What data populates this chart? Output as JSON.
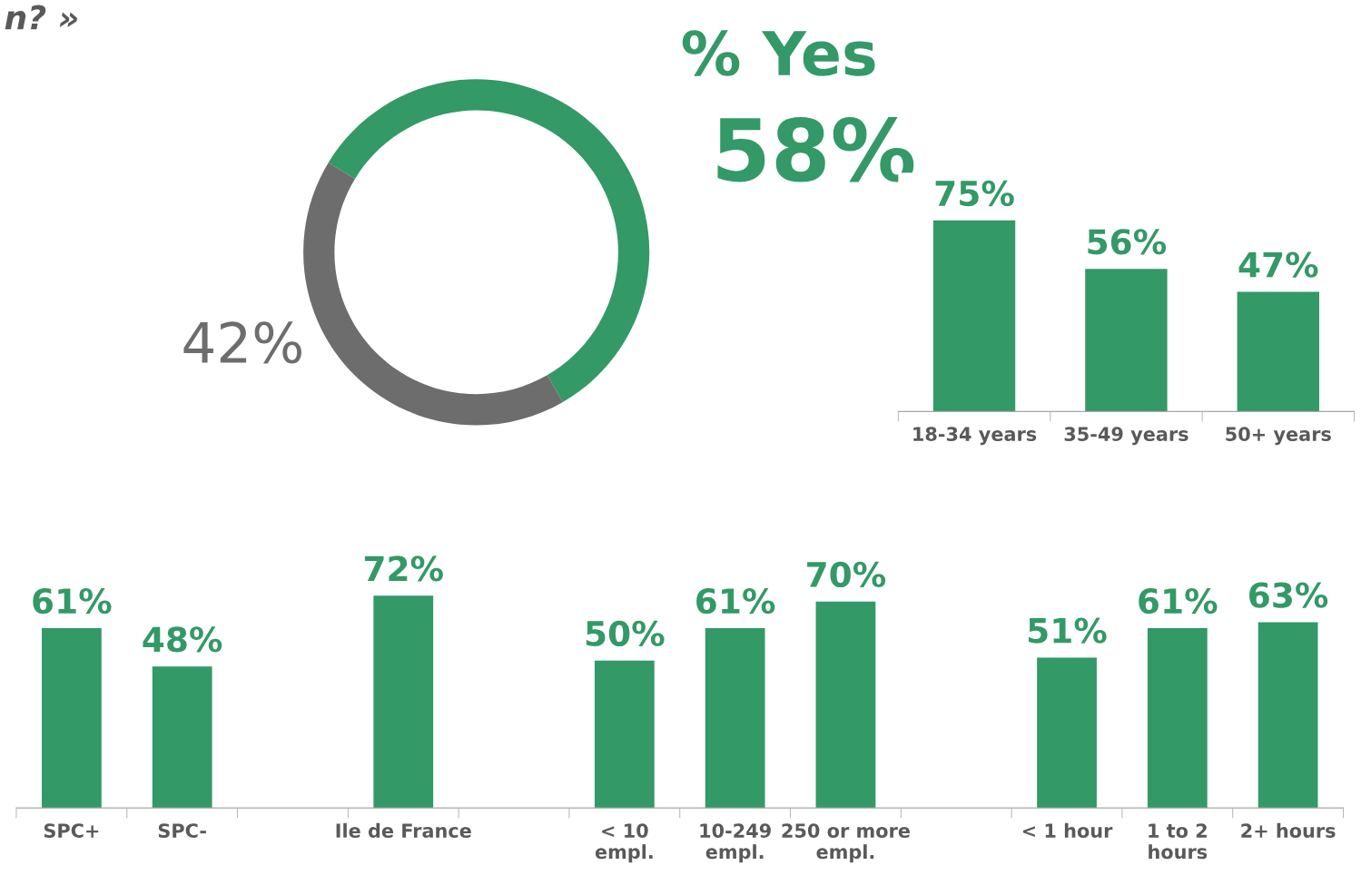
{
  "chart_data": [
    {
      "type": "donut",
      "title": "% Yes",
      "categories": [
        null,
        null
      ],
      "values": [
        58,
        42
      ],
      "colors": [
        "#339966",
        "#6d6d6e"
      ],
      "value_labels": [
        "58%",
        "42%"
      ],
      "annotations": [
        "n? »"
      ]
    },
    {
      "type": "bar",
      "categories": [
        "18-34 years",
        "35-49 years",
        "50+ years"
      ],
      "values": [
        75,
        56,
        47
      ],
      "value_labels": [
        "75%",
        "56%",
        "47%"
      ],
      "color": "#339966"
    },
    {
      "type": "bar",
      "categories": [
        "SPC+",
        "SPC-",
        null,
        "Ile de France",
        null,
        "< 10\nempl.",
        "10-249\nempl.",
        "250 or more\nempl.",
        null,
        "< 1 hour",
        "1 to 2\nhours",
        "2+ hours"
      ],
      "values": [
        61,
        48,
        null,
        72,
        null,
        50,
        61,
        70,
        null,
        51,
        61,
        63
      ],
      "value_labels": [
        "61%",
        "48%",
        null,
        "72%",
        null,
        "50%",
        "61%",
        "70%",
        null,
        "51%",
        "61%",
        "63%"
      ],
      "color": "#339966"
    }
  ]
}
